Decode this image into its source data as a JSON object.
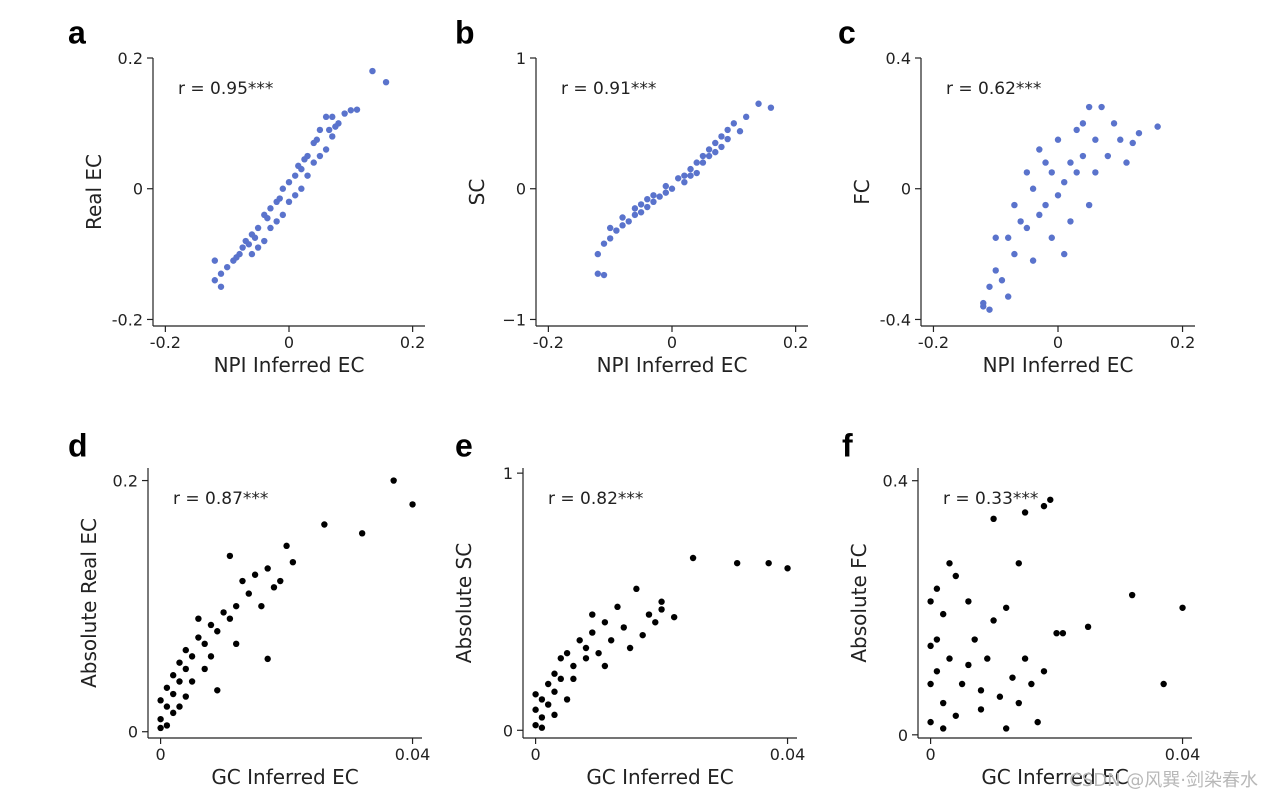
{
  "watermark": "CSDN @风巽·剑染春水",
  "chart_data": [
    {
      "panel": "a",
      "type": "scatter",
      "xlabel": "NPI Inferred EC",
      "ylabel": "Real EC",
      "annotation": "r = 0.95***",
      "color": "#5a73cc",
      "xlim": [
        -0.22,
        0.22
      ],
      "ylim": [
        -0.21,
        0.2
      ],
      "xticks": [
        -0.2,
        0,
        0.2
      ],
      "xtick_labels": [
        "-0.2",
        "0",
        "0.2"
      ],
      "yticks": [
        -0.2,
        0,
        0.2
      ],
      "ytick_labels": [
        "-0.2",
        "0",
        "0.2"
      ],
      "points": [
        [
          0.135,
          0.18
        ],
        [
          0.157,
          0.163
        ],
        [
          0.1,
          0.12
        ],
        [
          0.11,
          0.121
        ],
        [
          0.09,
          0.115
        ],
        [
          0.07,
          0.11
        ],
        [
          0.06,
          0.11
        ],
        [
          0.08,
          0.1
        ],
        [
          0.05,
          0.09
        ],
        [
          0.07,
          0.08
        ],
        [
          0.04,
          0.07
        ],
        [
          0.06,
          0.06
        ],
        [
          0.03,
          0.05
        ],
        [
          0.05,
          0.05
        ],
        [
          0.02,
          0.03
        ],
        [
          0.04,
          0.04
        ],
        [
          0.01,
          0.02
        ],
        [
          0.03,
          0.02
        ],
        [
          0.0,
          0.01
        ],
        [
          0.02,
          0.0
        ],
        [
          -0.01,
          0.0
        ],
        [
          0.01,
          -0.01
        ],
        [
          -0.02,
          -0.02
        ],
        [
          0.0,
          -0.02
        ],
        [
          -0.03,
          -0.03
        ],
        [
          -0.01,
          -0.04
        ],
        [
          -0.04,
          -0.04
        ],
        [
          -0.02,
          -0.05
        ],
        [
          -0.05,
          -0.06
        ],
        [
          -0.03,
          -0.06
        ],
        [
          -0.06,
          -0.07
        ],
        [
          -0.04,
          -0.08
        ],
        [
          -0.07,
          -0.08
        ],
        [
          -0.05,
          -0.09
        ],
        [
          -0.08,
          -0.1
        ],
        [
          -0.06,
          -0.1
        ],
        [
          -0.09,
          -0.11
        ],
        [
          -0.1,
          -0.12
        ],
        [
          -0.11,
          -0.13
        ],
        [
          -0.12,
          -0.14
        ],
        [
          -0.11,
          -0.15
        ],
        [
          -0.12,
          -0.11
        ],
        [
          0.065,
          0.09
        ],
        [
          0.075,
          0.095
        ],
        [
          0.045,
          0.075
        ],
        [
          0.025,
          0.045
        ],
        [
          0.015,
          0.035
        ],
        [
          -0.015,
          -0.015
        ],
        [
          -0.035,
          -0.045
        ],
        [
          -0.055,
          -0.075
        ],
        [
          -0.065,
          -0.085
        ],
        [
          -0.075,
          -0.09
        ],
        [
          -0.085,
          -0.105
        ]
      ]
    },
    {
      "panel": "b",
      "type": "scatter",
      "xlabel": "NPI Inferred EC",
      "ylabel": "SC",
      "annotation": "r = 0.91***",
      "color": "#5a73cc",
      "xlim": [
        -0.22,
        0.22
      ],
      "ylim": [
        -1.05,
        1.0
      ],
      "xticks": [
        -0.2,
        0,
        0.2
      ],
      "xtick_labels": [
        "-0.2",
        "0",
        "0.2"
      ],
      "yticks": [
        -1,
        0,
        1
      ],
      "ytick_labels": [
        "−1",
        "0",
        "1"
      ],
      "points": [
        [
          0.14,
          0.65
        ],
        [
          0.16,
          0.62
        ],
        [
          0.12,
          0.55
        ],
        [
          0.1,
          0.5
        ],
        [
          0.09,
          0.45
        ],
        [
          0.08,
          0.4
        ],
        [
          0.07,
          0.35
        ],
        [
          0.06,
          0.3
        ],
        [
          0.05,
          0.25
        ],
        [
          0.04,
          0.2
        ],
        [
          0.03,
          0.15
        ],
        [
          0.02,
          0.1
        ],
        [
          0.01,
          0.08
        ],
        [
          0.0,
          0.0
        ],
        [
          -0.01,
          -0.03
        ],
        [
          -0.02,
          -0.06
        ],
        [
          -0.03,
          -0.1
        ],
        [
          -0.04,
          -0.14
        ],
        [
          -0.05,
          -0.18
        ],
        [
          -0.06,
          -0.2
        ],
        [
          -0.07,
          -0.25
        ],
        [
          -0.08,
          -0.28
        ],
        [
          -0.09,
          -0.32
        ],
        [
          -0.1,
          -0.38
        ],
        [
          -0.11,
          -0.42
        ],
        [
          -0.12,
          -0.5
        ],
        [
          -0.12,
          -0.65
        ],
        [
          -0.11,
          -0.66
        ],
        [
          0.07,
          0.28
        ],
        [
          0.08,
          0.32
        ],
        [
          0.06,
          0.25
        ],
        [
          0.05,
          0.2
        ],
        [
          0.03,
          0.1
        ],
        [
          0.02,
          0.05
        ],
        [
          -0.01,
          0.02
        ],
        [
          -0.03,
          -0.05
        ],
        [
          -0.05,
          -0.12
        ],
        [
          -0.06,
          -0.15
        ],
        [
          -0.08,
          -0.22
        ],
        [
          -0.1,
          -0.3
        ],
        [
          -0.04,
          -0.08
        ],
        [
          0.04,
          0.12
        ],
        [
          0.09,
          0.38
        ],
        [
          0.11,
          0.44
        ]
      ]
    },
    {
      "panel": "c",
      "type": "scatter",
      "xlabel": "NPI Inferred EC",
      "ylabel": "FC",
      "annotation": "r = 0.62***",
      "color": "#5a73cc",
      "xlim": [
        -0.22,
        0.22
      ],
      "ylim": [
        -0.42,
        0.4
      ],
      "xticks": [
        -0.2,
        0,
        0.2
      ],
      "xtick_labels": [
        "-0.2",
        "0",
        "0.2"
      ],
      "yticks": [
        -0.4,
        0,
        0.4
      ],
      "ytick_labels": [
        "-0.4",
        "0",
        "0.4"
      ],
      "points": [
        [
          0.16,
          0.19
        ],
        [
          0.13,
          0.17
        ],
        [
          0.11,
          0.08
        ],
        [
          0.09,
          0.2
        ],
        [
          0.07,
          0.25
        ],
        [
          0.05,
          0.25
        ],
        [
          0.06,
          0.15
        ],
        [
          0.04,
          0.1
        ],
        [
          0.03,
          0.05
        ],
        [
          0.02,
          0.08
        ],
        [
          0.01,
          0.02
        ],
        [
          0.0,
          -0.02
        ],
        [
          -0.01,
          0.05
        ],
        [
          -0.02,
          -0.05
        ],
        [
          -0.03,
          -0.08
        ],
        [
          -0.04,
          0.0
        ],
        [
          -0.05,
          -0.12
        ],
        [
          -0.06,
          -0.1
        ],
        [
          -0.07,
          -0.2
        ],
        [
          -0.08,
          -0.15
        ],
        [
          -0.09,
          -0.28
        ],
        [
          -0.1,
          -0.25
        ],
        [
          -0.11,
          -0.3
        ],
        [
          -0.12,
          -0.35
        ],
        [
          -0.11,
          -0.37
        ],
        [
          -0.12,
          -0.36
        ],
        [
          -0.08,
          -0.33
        ],
        [
          0.08,
          0.1
        ],
        [
          0.1,
          0.15
        ],
        [
          0.12,
          0.14
        ],
        [
          0.02,
          -0.1
        ],
        [
          -0.01,
          -0.15
        ],
        [
          0.0,
          0.15
        ],
        [
          0.03,
          0.18
        ],
        [
          -0.03,
          0.12
        ],
        [
          -0.05,
          0.05
        ],
        [
          0.05,
          -0.05
        ],
        [
          -0.07,
          -0.05
        ],
        [
          0.04,
          0.2
        ],
        [
          -0.02,
          0.08
        ],
        [
          0.06,
          0.05
        ],
        [
          -0.1,
          -0.15
        ],
        [
          0.01,
          -0.2
        ],
        [
          -0.04,
          -0.22
        ]
      ]
    },
    {
      "panel": "d",
      "type": "scatter",
      "xlabel": "GC Inferred EC",
      "ylabel": "Absolute Real EC",
      "annotation": "r = 0.87***",
      "color": "#000000",
      "xlim": [
        -0.002,
        0.0415
      ],
      "ylim": [
        -0.005,
        0.21
      ],
      "xticks": [
        0,
        0.04
      ],
      "xtick_labels": [
        "0",
        "0.04"
      ],
      "yticks": [
        0,
        0.2
      ],
      "ytick_labels": [
        "0",
        "0.2"
      ],
      "points": [
        [
          0.037,
          0.2
        ],
        [
          0.04,
          0.181
        ],
        [
          0.032,
          0.158
        ],
        [
          0.026,
          0.165
        ],
        [
          0.02,
          0.148
        ],
        [
          0.021,
          0.135
        ],
        [
          0.019,
          0.12
        ],
        [
          0.017,
          0.13
        ],
        [
          0.015,
          0.125
        ],
        [
          0.014,
          0.11
        ],
        [
          0.013,
          0.12
        ],
        [
          0.012,
          0.1
        ],
        [
          0.011,
          0.09
        ],
        [
          0.01,
          0.095
        ],
        [
          0.009,
          0.08
        ],
        [
          0.008,
          0.085
        ],
        [
          0.007,
          0.07
        ],
        [
          0.006,
          0.075
        ],
        [
          0.005,
          0.06
        ],
        [
          0.004,
          0.05
        ],
        [
          0.004,
          0.065
        ],
        [
          0.003,
          0.04
        ],
        [
          0.003,
          0.055
        ],
        [
          0.002,
          0.03
        ],
        [
          0.002,
          0.045
        ],
        [
          0.001,
          0.02
        ],
        [
          0.001,
          0.035
        ],
        [
          0.0,
          0.01
        ],
        [
          0.0,
          0.025
        ],
        [
          0.0,
          0.003
        ],
        [
          0.001,
          0.005
        ],
        [
          0.002,
          0.015
        ],
        [
          0.017,
          0.058
        ],
        [
          0.009,
          0.033
        ],
        [
          0.016,
          0.1
        ],
        [
          0.018,
          0.115
        ],
        [
          0.011,
          0.14
        ],
        [
          0.006,
          0.09
        ],
        [
          0.005,
          0.04
        ],
        [
          0.012,
          0.07
        ],
        [
          0.008,
          0.06
        ],
        [
          0.003,
          0.02
        ],
        [
          0.004,
          0.028
        ],
        [
          0.007,
          0.05
        ]
      ]
    },
    {
      "panel": "e",
      "type": "scatter",
      "xlabel": "GC Inferred EC",
      "ylabel": "Absolute SC",
      "annotation": "r = 0.82***",
      "color": "#000000",
      "xlim": [
        -0.002,
        0.0415
      ],
      "ylim": [
        -0.03,
        1.02
      ],
      "xticks": [
        0,
        0.04
      ],
      "xtick_labels": [
        "0",
        "0.04"
      ],
      "yticks": [
        0,
        1
      ],
      "ytick_labels": [
        "0",
        "1"
      ],
      "points": [
        [
          0.025,
          0.67
        ],
        [
          0.032,
          0.65
        ],
        [
          0.037,
          0.65
        ],
        [
          0.04,
          0.63
        ],
        [
          0.022,
          0.44
        ],
        [
          0.02,
          0.5
        ],
        [
          0.018,
          0.45
        ],
        [
          0.016,
          0.55
        ],
        [
          0.014,
          0.4
        ],
        [
          0.013,
          0.48
        ],
        [
          0.012,
          0.35
        ],
        [
          0.011,
          0.42
        ],
        [
          0.01,
          0.3
        ],
        [
          0.009,
          0.38
        ],
        [
          0.008,
          0.28
        ],
        [
          0.007,
          0.35
        ],
        [
          0.006,
          0.25
        ],
        [
          0.005,
          0.3
        ],
        [
          0.004,
          0.2
        ],
        [
          0.004,
          0.28
        ],
        [
          0.003,
          0.15
        ],
        [
          0.003,
          0.22
        ],
        [
          0.002,
          0.1
        ],
        [
          0.002,
          0.18
        ],
        [
          0.001,
          0.05
        ],
        [
          0.001,
          0.12
        ],
        [
          0.0,
          0.02
        ],
        [
          0.0,
          0.08
        ],
        [
          0.0,
          0.14
        ],
        [
          0.001,
          0.01
        ],
        [
          0.015,
          0.32
        ],
        [
          0.019,
          0.42
        ],
        [
          0.02,
          0.47
        ],
        [
          0.017,
          0.37
        ],
        [
          0.009,
          0.45
        ],
        [
          0.006,
          0.2
        ],
        [
          0.008,
          0.32
        ],
        [
          0.011,
          0.25
        ],
        [
          0.005,
          0.12
        ],
        [
          0.003,
          0.06
        ]
      ]
    },
    {
      "panel": "f",
      "type": "scatter",
      "xlabel": "GC Inferred EC",
      "ylabel": "Absolute FC",
      "annotation": "r = 0.33***",
      "color": "#000000",
      "xlim": [
        -0.002,
        0.0415
      ],
      "ylim": [
        -0.005,
        0.42
      ],
      "xticks": [
        0,
        0.04
      ],
      "xtick_labels": [
        "0",
        "0.04"
      ],
      "yticks": [
        0,
        0.4
      ],
      "ytick_labels": [
        "0",
        "0.4"
      ],
      "points": [
        [
          0.019,
          0.37
        ],
        [
          0.018,
          0.36
        ],
        [
          0.01,
          0.34
        ],
        [
          0.015,
          0.35
        ],
        [
          0.014,
          0.27
        ],
        [
          0.032,
          0.22
        ],
        [
          0.04,
          0.2
        ],
        [
          0.037,
          0.08
        ],
        [
          0.025,
          0.17
        ],
        [
          0.02,
          0.16
        ],
        [
          0.021,
          0.16
        ],
        [
          0.018,
          0.1
        ],
        [
          0.017,
          0.02
        ],
        [
          0.016,
          0.08
        ],
        [
          0.015,
          0.12
        ],
        [
          0.013,
          0.09
        ],
        [
          0.012,
          0.2
        ],
        [
          0.011,
          0.06
        ],
        [
          0.01,
          0.18
        ],
        [
          0.009,
          0.12
        ],
        [
          0.008,
          0.04
        ],
        [
          0.007,
          0.15
        ],
        [
          0.006,
          0.21
        ],
        [
          0.005,
          0.08
        ],
        [
          0.004,
          0.25
        ],
        [
          0.003,
          0.12
        ],
        [
          0.003,
          0.27
        ],
        [
          0.002,
          0.05
        ],
        [
          0.002,
          0.19
        ],
        [
          0.001,
          0.1
        ],
        [
          0.001,
          0.23
        ],
        [
          0.0,
          0.02
        ],
        [
          0.0,
          0.14
        ],
        [
          0.0,
          0.08
        ],
        [
          0.0,
          0.21
        ],
        [
          0.001,
          0.15
        ],
        [
          0.002,
          0.01
        ],
        [
          0.004,
          0.03
        ],
        [
          0.006,
          0.11
        ],
        [
          0.012,
          0.01
        ],
        [
          0.014,
          0.05
        ],
        [
          0.008,
          0.07
        ]
      ]
    }
  ]
}
